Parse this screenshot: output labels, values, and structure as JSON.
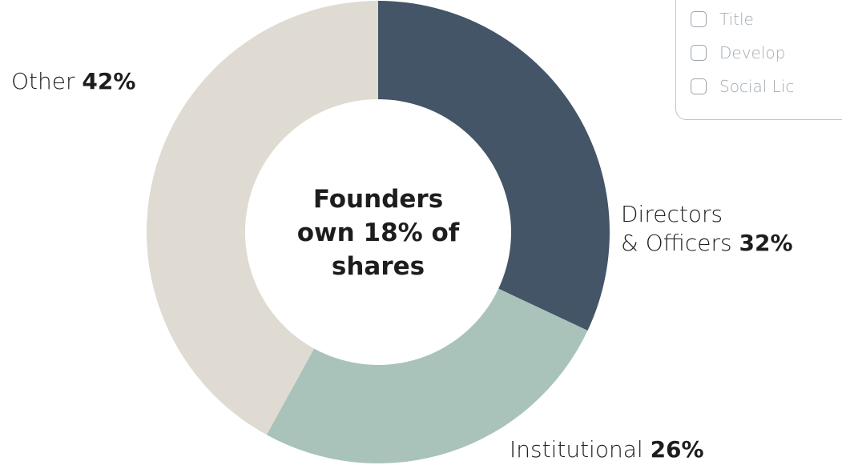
{
  "chart_data": {
    "type": "donut",
    "categories": [
      "Directors\n& Officers",
      "Institutional",
      "Other"
    ],
    "values": [
      32,
      26,
      42
    ],
    "value_labels": [
      "32%",
      "26%",
      "42%"
    ],
    "colors": [
      "#435566",
      "#a9c3bb",
      "#e0dbd2"
    ],
    "annotation": "Founders\nown 18% of\nshares"
  },
  "panel": {
    "items": [
      "Title",
      "Develop",
      "Social Lic"
    ]
  }
}
